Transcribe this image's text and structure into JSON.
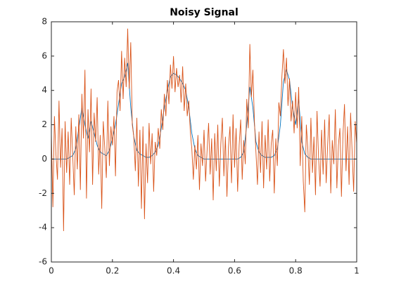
{
  "chart_data": {
    "type": "line",
    "title": "Noisy Signal",
    "xlim": [
      0,
      1
    ],
    "ylim": [
      -6,
      8
    ],
    "xticks": [
      0,
      0.2,
      0.4,
      0.6,
      0.8,
      1
    ],
    "yticks": [
      -6,
      -4,
      -2,
      0,
      2,
      4,
      6,
      8
    ],
    "grid": false,
    "series": [
      {
        "color": "#0072BD",
        "x": [
          0,
          0.01,
          0.02,
          0.03,
          0.04,
          0.05,
          0.06,
          0.07,
          0.08,
          0.09,
          0.1,
          0.11,
          0.12,
          0.13,
          0.14,
          0.15,
          0.16,
          0.17,
          0.18,
          0.19,
          0.2,
          0.21,
          0.22,
          0.23,
          0.24,
          0.25,
          0.26,
          0.27,
          0.28,
          0.29,
          0.3,
          0.31,
          0.32,
          0.33,
          0.34,
          0.35,
          0.36,
          0.37,
          0.38,
          0.39,
          0.4,
          0.41,
          0.42,
          0.43,
          0.44,
          0.45,
          0.46,
          0.47,
          0.48,
          0.49,
          0.5,
          0.51,
          0.52,
          0.53,
          0.54,
          0.55,
          0.56,
          0.57,
          0.58,
          0.59,
          0.6,
          0.61,
          0.62,
          0.63,
          0.64,
          0.65,
          0.66,
          0.67,
          0.68,
          0.69,
          0.7,
          0.71,
          0.72,
          0.73,
          0.74,
          0.75,
          0.76,
          0.77,
          0.78,
          0.79,
          0.8,
          0.81,
          0.82,
          0.83,
          0.84,
          0.85,
          0.86,
          0.87,
          0.88,
          0.89,
          0.9,
          0.91,
          0.92,
          0.93,
          0.94,
          0.95,
          0.96,
          0.97,
          0.98,
          0.99,
          1
        ],
        "values": [
          0,
          0,
          0,
          0,
          0,
          0,
          0.1,
          0.2,
          0.6,
          1.8,
          3.0,
          2.0,
          1.2,
          2.2,
          1.5,
          0.8,
          0.4,
          0.3,
          0.2,
          0.5,
          1.2,
          2.0,
          3.2,
          4.4,
          4.8,
          5.6,
          3.0,
          1.3,
          0.5,
          0.3,
          0.2,
          0.1,
          0.1,
          0.2,
          0.4,
          0.8,
          1.8,
          3.0,
          4.0,
          4.8,
          5.0,
          4.9,
          4.7,
          4.4,
          4.0,
          3.0,
          1.5,
          0.6,
          0.2,
          0.1,
          0,
          0,
          0,
          0,
          0,
          0,
          0,
          0,
          0,
          0,
          0,
          0,
          0.1,
          0.4,
          2.0,
          4.2,
          3.0,
          1.0,
          0.4,
          0.2,
          0.1,
          0.1,
          0.1,
          0.2,
          0.6,
          2.0,
          4.5,
          5.2,
          4.6,
          3.0,
          2.0,
          3.5,
          1.0,
          0.3,
          0.1,
          0,
          0,
          0,
          0,
          0,
          0,
          0,
          0,
          0,
          0,
          0,
          0,
          0,
          0,
          0,
          0
        ]
      },
      {
        "color": "#D95319",
        "x": [
          0,
          0.005,
          0.01,
          0.015,
          0.02,
          0.025,
          0.03,
          0.035,
          0.04,
          0.045,
          0.05,
          0.055,
          0.06,
          0.065,
          0.07,
          0.075,
          0.08,
          0.085,
          0.09,
          0.095,
          0.1,
          0.105,
          0.11,
          0.115,
          0.12,
          0.125,
          0.13,
          0.135,
          0.14,
          0.145,
          0.15,
          0.155,
          0.16,
          0.165,
          0.17,
          0.175,
          0.18,
          0.185,
          0.19,
          0.195,
          0.2,
          0.205,
          0.21,
          0.215,
          0.22,
          0.225,
          0.23,
          0.235,
          0.24,
          0.245,
          0.25,
          0.255,
          0.26,
          0.265,
          0.27,
          0.275,
          0.28,
          0.285,
          0.29,
          0.295,
          0.3,
          0.305,
          0.31,
          0.315,
          0.32,
          0.325,
          0.33,
          0.335,
          0.34,
          0.345,
          0.35,
          0.355,
          0.36,
          0.365,
          0.37,
          0.375,
          0.38,
          0.385,
          0.39,
          0.395,
          0.4,
          0.405,
          0.41,
          0.415,
          0.42,
          0.425,
          0.43,
          0.435,
          0.44,
          0.445,
          0.45,
          0.455,
          0.46,
          0.465,
          0.47,
          0.475,
          0.48,
          0.485,
          0.49,
          0.495,
          0.5,
          0.505,
          0.51,
          0.515,
          0.52,
          0.525,
          0.53,
          0.535,
          0.54,
          0.545,
          0.55,
          0.555,
          0.56,
          0.565,
          0.57,
          0.575,
          0.58,
          0.585,
          0.59,
          0.595,
          0.6,
          0.605,
          0.61,
          0.615,
          0.62,
          0.625,
          0.63,
          0.635,
          0.64,
          0.645,
          0.65,
          0.655,
          0.66,
          0.665,
          0.67,
          0.675,
          0.68,
          0.685,
          0.69,
          0.695,
          0.7,
          0.705,
          0.71,
          0.715,
          0.72,
          0.725,
          0.73,
          0.735,
          0.74,
          0.745,
          0.75,
          0.755,
          0.76,
          0.765,
          0.77,
          0.775,
          0.78,
          0.785,
          0.79,
          0.795,
          0.8,
          0.805,
          0.81,
          0.815,
          0.82,
          0.825,
          0.83,
          0.835,
          0.84,
          0.845,
          0.85,
          0.855,
          0.86,
          0.865,
          0.87,
          0.875,
          0.88,
          0.885,
          0.89,
          0.895,
          0.9,
          0.905,
          0.91,
          0.915,
          0.92,
          0.925,
          0.93,
          0.935,
          0.94,
          0.945,
          0.95,
          0.955,
          0.96,
          0.965,
          0.97,
          0.975,
          0.98,
          0.985,
          0.99,
          0.995,
          1
        ],
        "values": [
          1.5,
          -2.8,
          2.5,
          0.3,
          -1.2,
          3.4,
          -0.5,
          1.8,
          -4.2,
          2.2,
          -0.8,
          1.6,
          -1.5,
          2.4,
          0.2,
          -2.1,
          1.9,
          -0.6,
          2.6,
          -1.8,
          3.8,
          1.2,
          5.2,
          -2.3,
          2.9,
          0.4,
          4.1,
          -1.5,
          2.7,
          1.0,
          3.6,
          -0.9,
          1.4,
          -2.9,
          2.2,
          0.6,
          -1.1,
          3.4,
          -0.4,
          1.9,
          0.8,
          2.5,
          -1.0,
          3.9,
          4.6,
          2.8,
          6.3,
          3.5,
          5.9,
          4.2,
          7.6,
          4.1,
          6.8,
          2.0,
          1.3,
          -0.7,
          2.4,
          -1.6,
          1.7,
          -2.9,
          1.9,
          -3.5,
          0.9,
          -1.4,
          2.1,
          -0.3,
          1.5,
          -1.9,
          1.0,
          0.2,
          1.8,
          0.6,
          2.9,
          1.7,
          3.8,
          2.5,
          4.6,
          3.2,
          5.5,
          4.1,
          6.0,
          3.9,
          5.3,
          4.2,
          4.9,
          3.3,
          5.4,
          2.8,
          4.4,
          2.5,
          3.4,
          1.6,
          0.6,
          -1.2,
          0.8,
          -0.6,
          1.4,
          -1.8,
          0.9,
          -0.4,
          1.7,
          -1.3,
          0.5,
          2.1,
          -0.9,
          1.2,
          -2.4,
          1.5,
          -0.7,
          2.0,
          -1.6,
          0.9,
          2.4,
          -1.0,
          1.3,
          -2.2,
          0.7,
          1.9,
          -1.4,
          2.6,
          -0.5,
          1.8,
          -1.9,
          0.8,
          2.3,
          -1.2,
          1.1,
          -0.3,
          3.5,
          1.8,
          6.7,
          3.6,
          5.2,
          2.2,
          0.4,
          -1.5,
          1.6,
          -0.8,
          2.2,
          -1.7,
          1.4,
          -0.6,
          2.3,
          -1.3,
          0.9,
          1.7,
          -2.0,
          1.2,
          -0.4,
          3.3,
          2.5,
          4.8,
          6.4,
          4.4,
          5.9,
          3.1,
          4.7,
          2.2,
          3.4,
          1.5,
          3.9,
          1.8,
          4.2,
          -0.4,
          2.5,
          -1.3,
          -3.1,
          2.0,
          0.6,
          -1.5,
          2.4,
          -0.8,
          1.3,
          -2.1,
          2.8,
          0.1,
          -1.6,
          1.7,
          -0.9,
          2.3,
          -1.4,
          0.9,
          2.6,
          -2.0,
          1.1,
          -0.3,
          2.9,
          -1.7,
          0.8,
          1.8,
          -2.2,
          1.4,
          3.2,
          -0.7,
          1.9,
          -1.5,
          2.7,
          0.4,
          -1.9,
          2.2,
          0.9
        ]
      }
    ]
  }
}
